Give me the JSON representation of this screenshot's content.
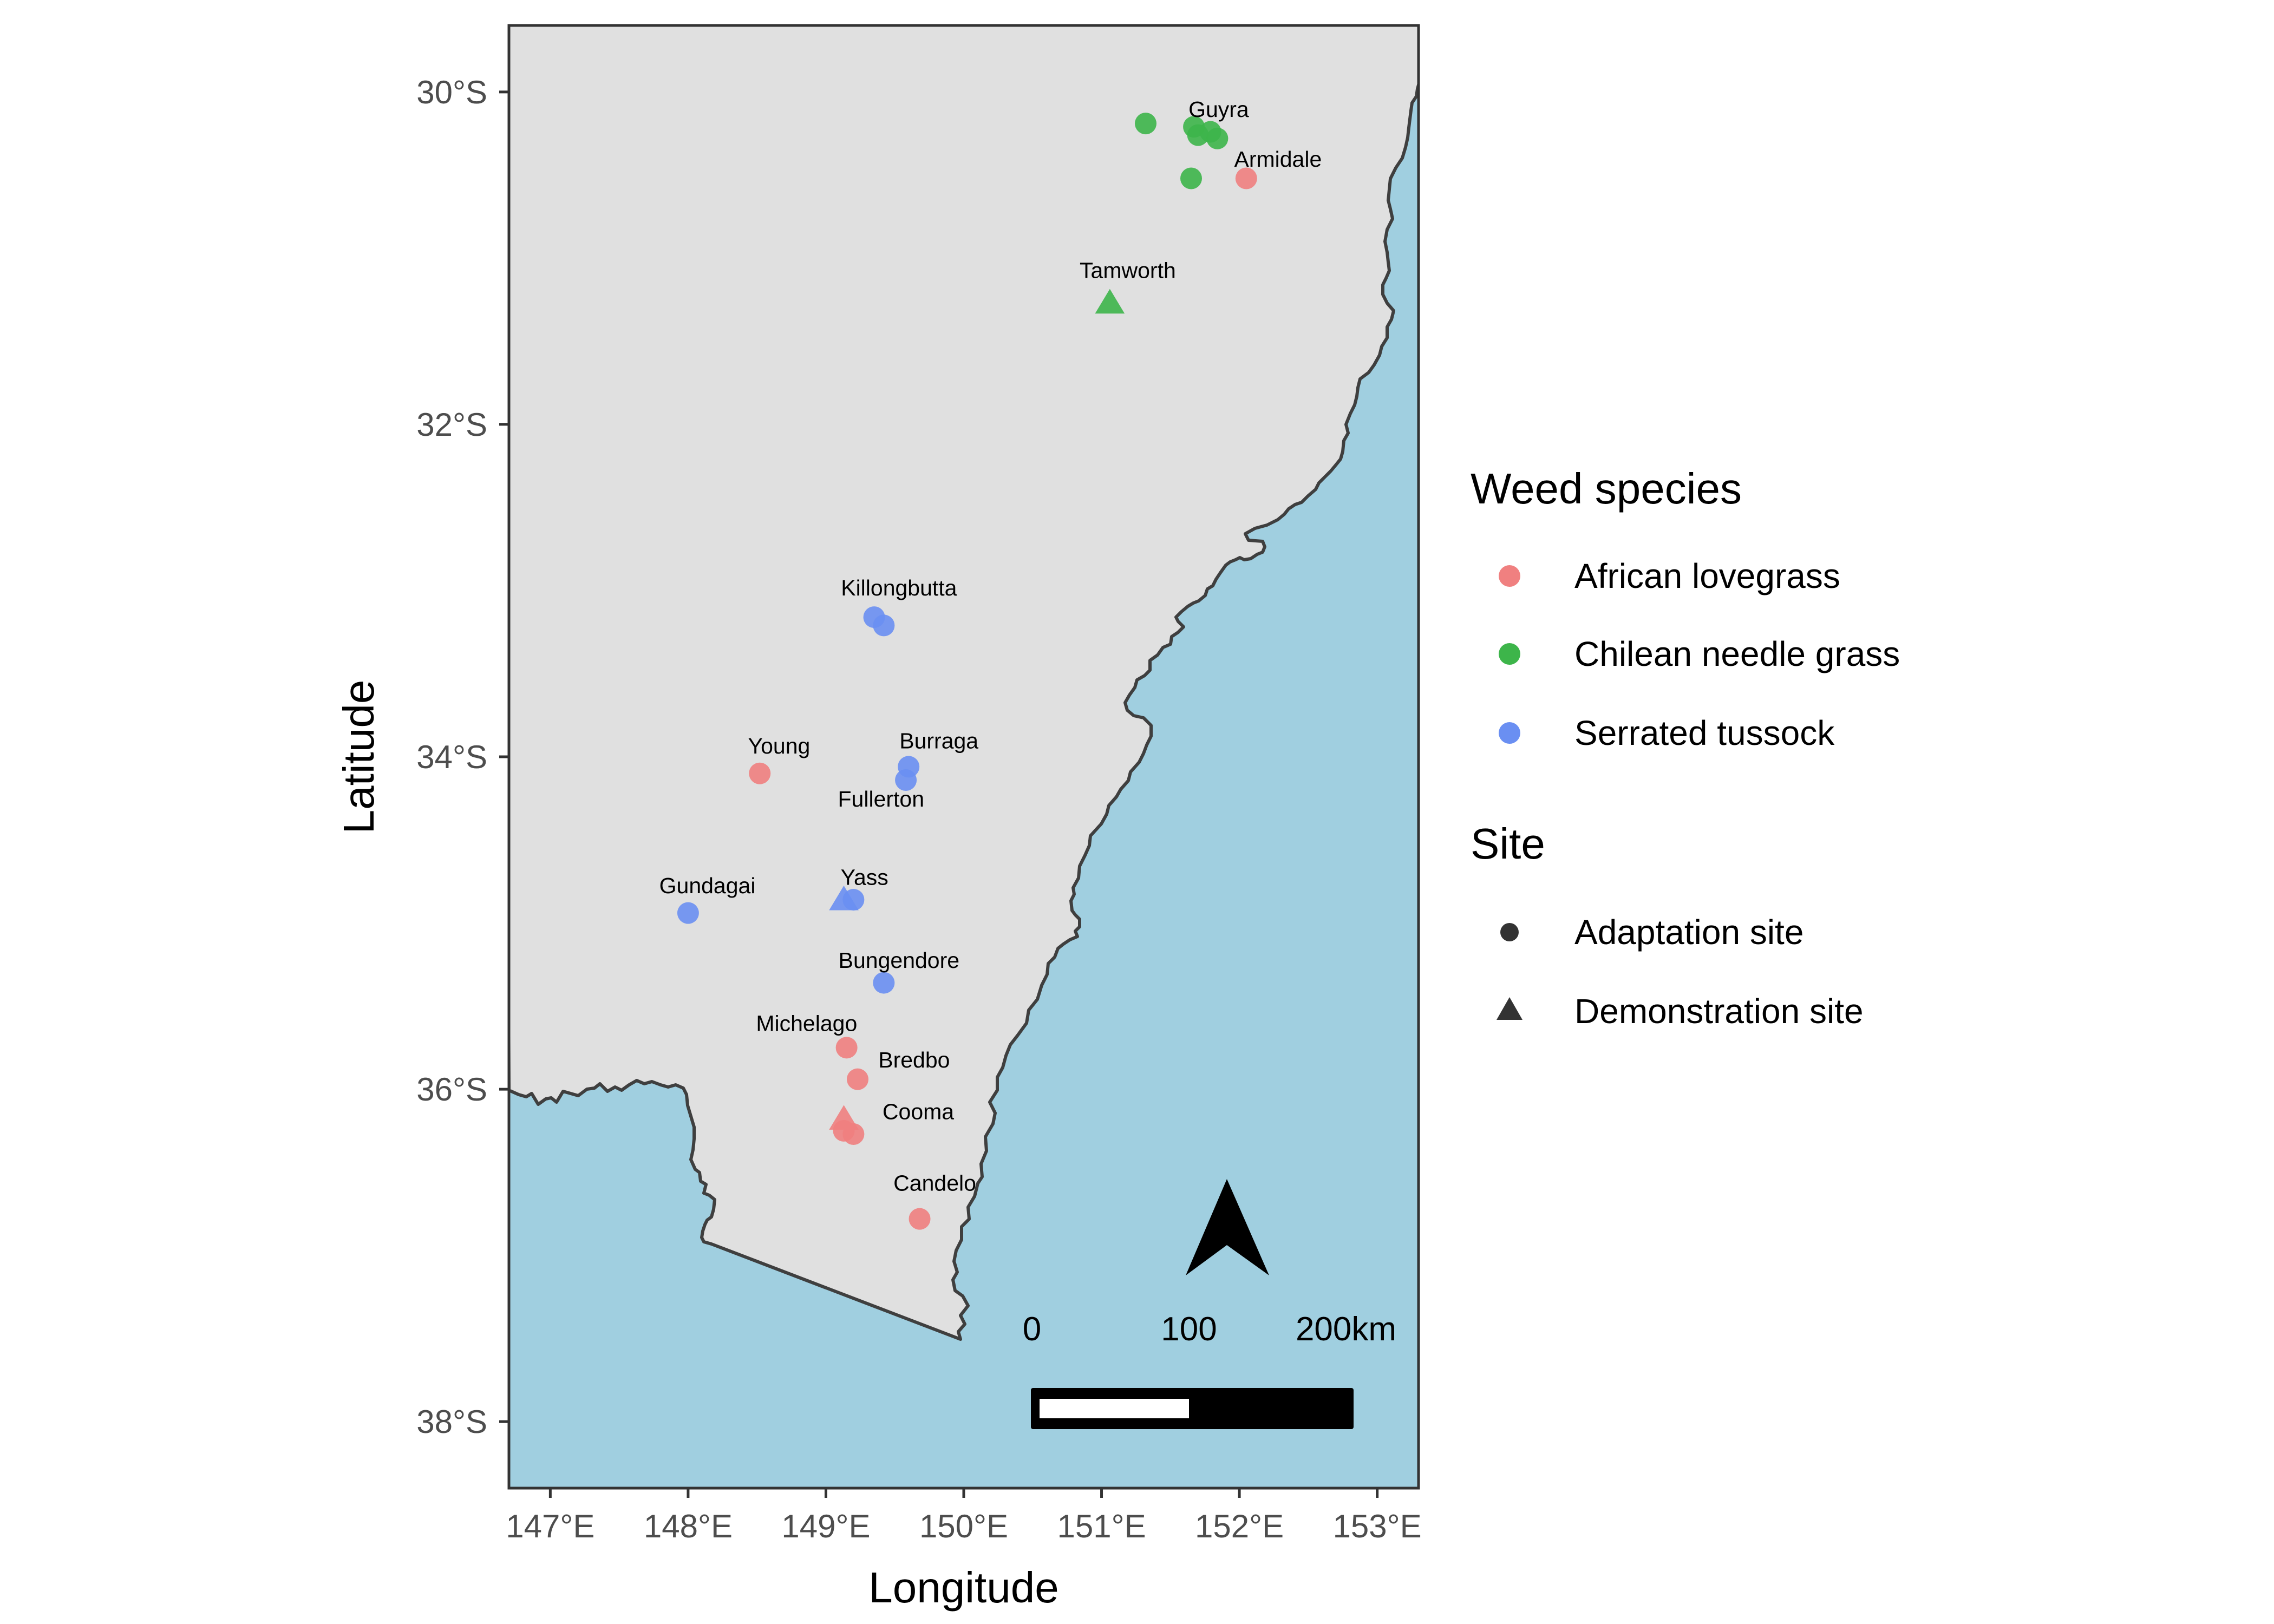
{
  "axes": {
    "x_label": "Longitude",
    "y_label": "Latitude",
    "x_ticks": [
      "147°E",
      "148°E",
      "149°E",
      "150°E",
      "151°E",
      "152°E",
      "153°E"
    ],
    "y_ticks": [
      "30°S",
      "32°S",
      "34°S",
      "36°S",
      "38°S"
    ]
  },
  "legend": {
    "species_title": "Weed species",
    "species": [
      {
        "label": "African lovegrass",
        "color": "#F08080"
      },
      {
        "label": "Chilean needle grass",
        "color": "#3DB54A"
      },
      {
        "label": "Serrated tussock",
        "color": "#6A8FF2"
      }
    ],
    "site_title": "Site",
    "sites": [
      {
        "label": "Adaptation site",
        "shape": "circle"
      },
      {
        "label": "Demonstration site",
        "shape": "triangle"
      }
    ]
  },
  "scale_bar": {
    "labels": [
      "0",
      "100",
      "200km"
    ]
  },
  "north_arrow": {
    "icon": "north-arrow-icon"
  },
  "colors": {
    "land": "#E0E0E0",
    "sea": "#A0CFE0",
    "coast": "#3F3F3F",
    "african": "#F08080",
    "chilean": "#3DB54A",
    "serrated": "#6A8FF2"
  },
  "place_labels": [
    "Guyra",
    "Armidale",
    "Tamworth",
    "Killongbutta",
    "Young",
    "Burraga",
    "Fullerton",
    "Yass",
    "Gundagai",
    "Bungendore",
    "Michelago",
    "Bredbo",
    "Cooma",
    "Candelo"
  ],
  "chart_data": {
    "type": "scatter",
    "xlabel": "Longitude",
    "ylabel": "Latitude",
    "xlim": [
      146.7,
      153.3
    ],
    "ylim": [
      -38.4,
      -29.6
    ],
    "grid": false,
    "legend_position": "right",
    "series": [
      {
        "name": "African lovegrass",
        "color": "#F08080",
        "points": [
          {
            "x": 152.05,
            "y": -30.52,
            "site": "Adaptation site"
          },
          {
            "x": 148.52,
            "y": -34.1,
            "site": "Adaptation site"
          },
          {
            "x": 149.15,
            "y": -35.75,
            "site": "Adaptation site"
          },
          {
            "x": 149.23,
            "y": -35.94,
            "site": "Adaptation site"
          },
          {
            "x": 149.13,
            "y": -36.25,
            "site": "Adaptation site"
          },
          {
            "x": 149.2,
            "y": -36.27,
            "site": "Adaptation site"
          },
          {
            "x": 149.13,
            "y": -36.18,
            "site": "Demonstration site"
          },
          {
            "x": 149.68,
            "y": -36.78,
            "site": "Adaptation site"
          }
        ]
      },
      {
        "name": "Chilean needle grass",
        "color": "#3DB54A",
        "points": [
          {
            "x": 151.32,
            "y": -30.19,
            "site": "Adaptation site"
          },
          {
            "x": 151.67,
            "y": -30.21,
            "site": "Adaptation site"
          },
          {
            "x": 151.7,
            "y": -30.26,
            "site": "Adaptation site"
          },
          {
            "x": 151.79,
            "y": -30.24,
            "site": "Adaptation site"
          },
          {
            "x": 151.84,
            "y": -30.28,
            "site": "Adaptation site"
          },
          {
            "x": 151.65,
            "y": -30.52,
            "site": "Adaptation site"
          },
          {
            "x": 151.06,
            "y": -31.27,
            "site": "Demonstration site"
          }
        ]
      },
      {
        "name": "Serrated tussock",
        "color": "#6A8FF2",
        "points": [
          {
            "x": 149.35,
            "y": -33.16,
            "site": "Adaptation site"
          },
          {
            "x": 149.42,
            "y": -33.21,
            "site": "Adaptation site"
          },
          {
            "x": 149.6,
            "y": -34.06,
            "site": "Adaptation site"
          },
          {
            "x": 149.58,
            "y": -34.14,
            "site": "Adaptation site"
          },
          {
            "x": 149.13,
            "y": -34.86,
            "site": "Demonstration site"
          },
          {
            "x": 149.2,
            "y": -34.86,
            "site": "Adaptation site"
          },
          {
            "x": 148.0,
            "y": -34.94,
            "site": "Adaptation site"
          },
          {
            "x": 149.42,
            "y": -35.36,
            "site": "Adaptation site"
          }
        ]
      }
    ]
  }
}
